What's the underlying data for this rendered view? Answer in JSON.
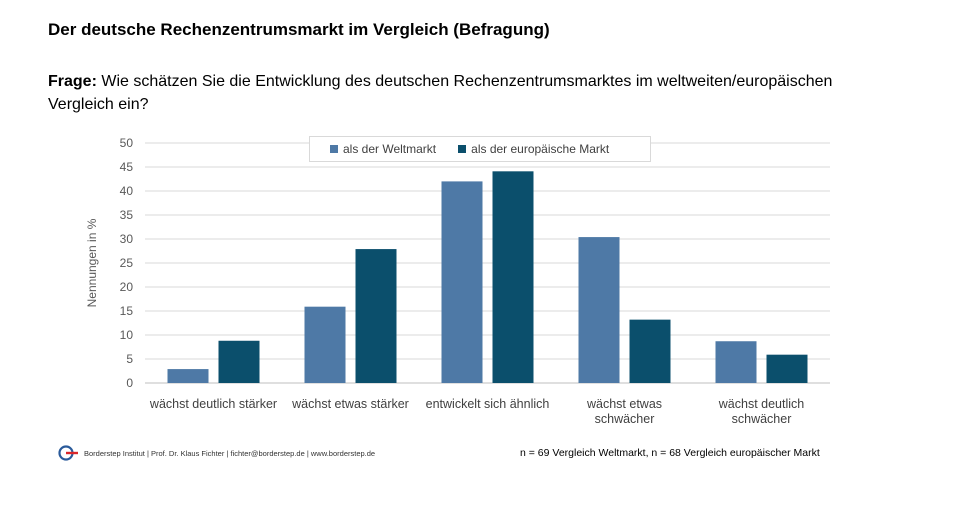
{
  "page": {
    "title": "Der deutsche Rechenzentrumsmarkt im Vergleich (Befragung)",
    "question_label": "Frage:",
    "question_text": " Wie schätzen Sie die Entwicklung des deutschen Rechenzentrumsmarktes im weltweiten/europäischen Vergleich ein?",
    "footer_source": "Borderstep Institut | Prof. Dr. Klaus Fichter | fichter@borderstep.de | www.borderstep.de",
    "footer_note": "n = 69 Vergleich Weltmarkt, n = 68 Vergleich europäischer Markt",
    "logo_icon": "borderstep-logo-icon"
  },
  "chart_data": {
    "type": "bar",
    "categories": [
      [
        "wächst deutlich stärker"
      ],
      [
        "wächst etwas stärker"
      ],
      [
        "entwickelt sich ähnlich"
      ],
      [
        "wächst etwas",
        "schwächer"
      ],
      [
        "wächst deutlich",
        "schwächer"
      ]
    ],
    "series": [
      {
        "name": "als der Weltmarkt",
        "color": "#4e79a6",
        "values": [
          2.9,
          15.9,
          42.0,
          30.4,
          8.7
        ]
      },
      {
        "name": "als der europäische Markt",
        "color": "#0b4f6c",
        "values": [
          8.8,
          27.9,
          44.1,
          13.2,
          5.9
        ]
      }
    ],
    "ylabel": "Nennungen in %",
    "ylim": [
      0,
      50
    ],
    "yticks": [
      0,
      5,
      10,
      15,
      20,
      25,
      30,
      35,
      40,
      45,
      50
    ],
    "grid": true,
    "legend_position": "top-center"
  }
}
